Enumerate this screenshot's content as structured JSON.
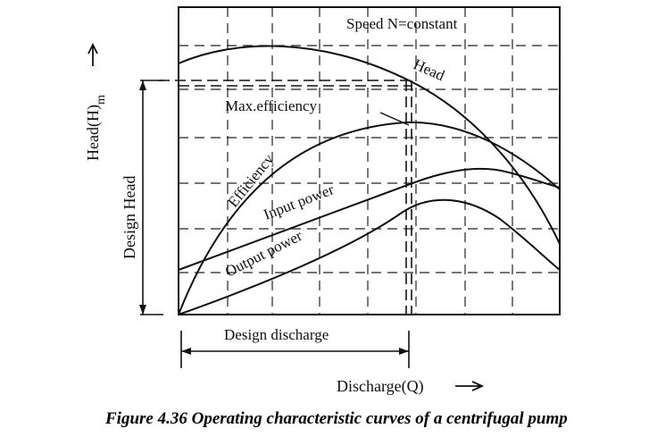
{
  "figure": {
    "caption": "Figure 4.36 Operating characteristic curves of a centrifugal pump",
    "speed_label": "Speed N=constant",
    "axis_y_label": "Head(H)",
    "axis_y_subscript": "m",
    "axis_x_label": "Discharge(Q)",
    "design_head_label": "Design Head",
    "design_discharge_label": "Design discharge",
    "arrow_glyph": "—→",
    "curves": {
      "head": "Head",
      "max_efficiency": "Max.efficiency",
      "efficiency": "Efficiency",
      "input_power": "Input power",
      "output_power": "Output power"
    }
  }
}
